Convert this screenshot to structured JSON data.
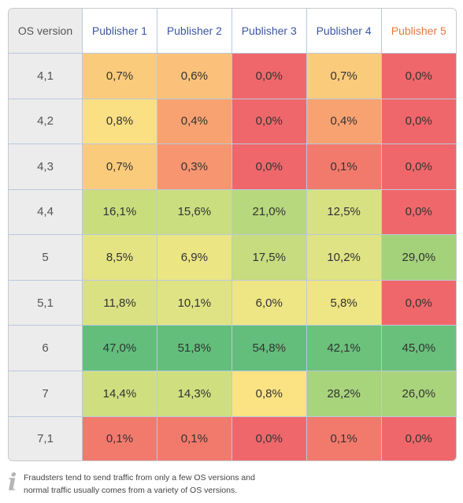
{
  "chart_data": {
    "type": "heatmap",
    "corner_label": "OS version",
    "columns": [
      "Publisher 1",
      "Publisher 2",
      "Publisher 3",
      "Publisher 4",
      "Publisher 5"
    ],
    "highlighted_column": 4,
    "highlight_color": "#e8773a",
    "rows": [
      "4,1",
      "4,2",
      "4,3",
      "4,4",
      "5",
      "5,1",
      "6",
      "7",
      "7,1"
    ],
    "values": [
      [
        0.7,
        0.6,
        0.0,
        0.7,
        0.0
      ],
      [
        0.8,
        0.4,
        0.0,
        0.4,
        0.0
      ],
      [
        0.7,
        0.3,
        0.0,
        0.1,
        0.0
      ],
      [
        16.1,
        15.6,
        21.0,
        12.5,
        0.0
      ],
      [
        8.5,
        6.9,
        17.5,
        10.2,
        29.0
      ],
      [
        11.8,
        10.1,
        6.0,
        5.8,
        0.0
      ],
      [
        47.0,
        51.8,
        54.8,
        42.1,
        45.0
      ],
      [
        14.4,
        14.3,
        0.8,
        28.2,
        26.0
      ],
      [
        0.1,
        0.1,
        0.0,
        0.1,
        0.0
      ]
    ],
    "value_labels": [
      [
        "0,7%",
        "0,6%",
        "0,0%",
        "0,7%",
        "0,0%"
      ],
      [
        "0,8%",
        "0,4%",
        "0,0%",
        "0,4%",
        "0,0%"
      ],
      [
        "0,7%",
        "0,3%",
        "0,0%",
        "0,1%",
        "0,0%"
      ],
      [
        "16,1%",
        "15,6%",
        "21,0%",
        "12,5%",
        "0,0%"
      ],
      [
        "8,5%",
        "6,9%",
        "17,5%",
        "10,2%",
        "29,0%"
      ],
      [
        "11,8%",
        "10,1%",
        "6,0%",
        "5,8%",
        "0,0%"
      ],
      [
        "47,0%",
        "51,8%",
        "54,8%",
        "42,1%",
        "45,0%"
      ],
      [
        "14,4%",
        "14,3%",
        "0,8%",
        "28,2%",
        "26,0%"
      ],
      [
        "0,1%",
        "0,1%",
        "0,0%",
        "0,1%",
        "0,0%"
      ]
    ],
    "cell_colors": [
      [
        "#fbcb7c",
        "#fbc17a",
        "#f0676b",
        "#fbcb7c",
        "#f0676b"
      ],
      [
        "#fbdf83",
        "#f9a271",
        "#f0676b",
        "#f9a271",
        "#f0676b"
      ],
      [
        "#fbcb7c",
        "#f79570",
        "#f0676b",
        "#f27a6d",
        "#f0676b"
      ],
      [
        "#c9dd7d",
        "#cbde7f",
        "#b7d87c",
        "#d8e182",
        "#f0676b"
      ],
      [
        "#e5e483",
        "#ebe584",
        "#c6dc7e",
        "#dfe383",
        "#a4d27b"
      ],
      [
        "#dae182",
        "#e0e383",
        "#eee584",
        "#eee584",
        "#f0676b"
      ],
      [
        "#63be7b",
        "#63be7b",
        "#63be7b",
        "#6cc17b",
        "#69c07b"
      ],
      [
        "#cfdf80",
        "#cfdf80",
        "#fbe383",
        "#a8d47c",
        "#aad47c"
      ],
      [
        "#f27a6d",
        "#f27a6d",
        "#f0676b",
        "#f27a6d",
        "#f0676b"
      ]
    ]
  },
  "note": {
    "icon": "info-icon",
    "icon_glyph": "i",
    "line1": "Fraudsters tend to send traffic from only a few OS versions and",
    "line2": "normal traffic usually comes from a variety of OS versions."
  }
}
